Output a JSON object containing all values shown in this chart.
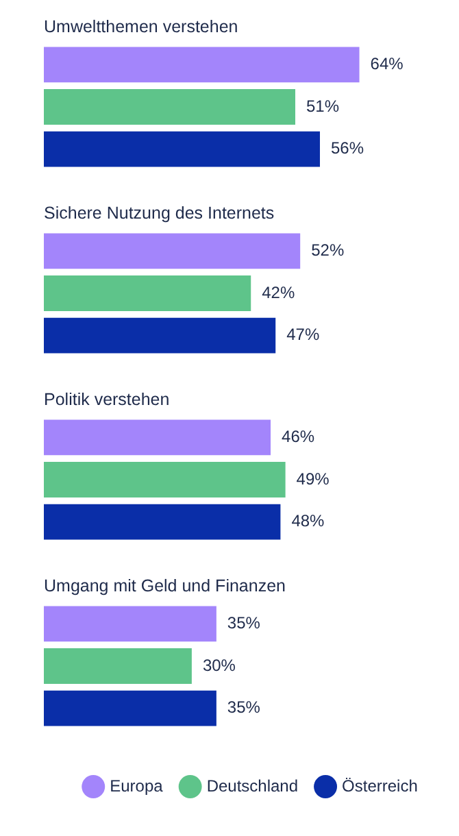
{
  "chart_data": {
    "type": "bar",
    "orientation": "horizontal",
    "tick_labels": false,
    "legend": "bottom",
    "categories": [
      "Umweltthemen verstehen",
      "Sichere Nutzung des Internets",
      "Politik verstehen",
      "Umgang mit Geld und Finanzen"
    ],
    "series": [
      {
        "name": "Europa",
        "color": "#a385fb",
        "values": [
          64,
          52,
          46,
          35
        ],
        "value_labels": [
          "64%",
          "52%",
          "46%",
          "35%"
        ]
      },
      {
        "name": "Deutschland",
        "color": "#5ec48a",
        "values": [
          51,
          42,
          49,
          30
        ],
        "value_labels": [
          "51%",
          "42%",
          "49%",
          "30%"
        ]
      },
      {
        "name": "Österreich",
        "color": "#0a2ea8",
        "values": [
          56,
          47,
          48,
          35
        ],
        "value_labels": [
          "56%",
          "47%",
          "48%",
          "35%"
        ]
      }
    ]
  }
}
